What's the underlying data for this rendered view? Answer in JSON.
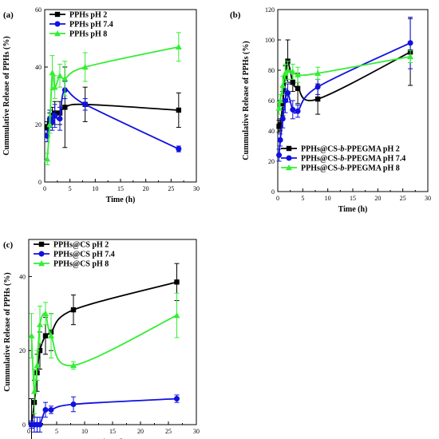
{
  "series_colors": {
    "black": "#000000",
    "blue": "#1010e0",
    "green": "#33ee33"
  },
  "chart_data": [
    {
      "type": "line",
      "panel_label": "(a)",
      "xlabel": "Time (h)",
      "ylabel": "Cummulative Release of PPHs (%)",
      "xlim": [
        0,
        30
      ],
      "ylim": [
        0,
        60
      ],
      "xticks": [
        0,
        5,
        10,
        15,
        20,
        25,
        30
      ],
      "yticks": [
        0,
        20,
        40,
        60
      ],
      "legend_position": "top-left",
      "series": [
        {
          "name": "PPHs pH 2",
          "color": "#000000",
          "marker": "square",
          "x": [
            0.5,
            1,
            1.5,
            2,
            3,
            4,
            8,
            26.5
          ],
          "y": [
            19,
            21,
            23,
            24,
            24,
            26,
            27,
            25
          ],
          "err": [
            2,
            3,
            3,
            4,
            4,
            14,
            6,
            6
          ]
        },
        {
          "name": "PPHs pH 7.4",
          "color": "#1010e0",
          "marker": "circle",
          "x": [
            0.5,
            1,
            1.5,
            2,
            3,
            4,
            8,
            26.5
          ],
          "y": [
            16,
            22,
            21,
            23,
            22,
            32,
            27,
            11.5
          ],
          "err": [
            2,
            3,
            3,
            4,
            4,
            3,
            2,
            1
          ]
        },
        {
          "name": "PPHs pH 8",
          "color": "#33ee33",
          "marker": "triangle",
          "x": [
            0.5,
            1,
            1.5,
            2,
            3,
            4,
            8,
            26.5
          ],
          "y": [
            8,
            20,
            38,
            33,
            37,
            36,
            40,
            47
          ],
          "err": [
            2,
            3,
            6,
            4,
            4,
            6,
            5,
            5
          ]
        }
      ]
    },
    {
      "type": "line",
      "panel_label": "(b)",
      "xlabel": "Time (h)",
      "ylabel": "Cummulative Release of PPHs (%)",
      "xlim": [
        0,
        30
      ],
      "ylim": [
        0,
        120
      ],
      "xticks": [
        0,
        5,
        10,
        15,
        20,
        25,
        30
      ],
      "yticks": [
        0,
        20,
        40,
        60,
        80,
        100,
        120
      ],
      "legend_position": "bottom-left",
      "series": [
        {
          "name_parts": [
            "PPHs@CS-",
            "b",
            "-PPEGMA pH 2"
          ],
          "color": "#000000",
          "marker": "square",
          "x": [
            0.25,
            0.5,
            1,
            1.5,
            2,
            3,
            4,
            8,
            26.5
          ],
          "y": [
            43,
            44,
            58,
            75,
            86,
            72,
            68,
            61,
            92
          ],
          "err": [
            4,
            4,
            8,
            8,
            14,
            6,
            10,
            10,
            22
          ]
        },
        {
          "name_parts": [
            "PPHs@CS-",
            "b",
            "-PPEGMA pH 7.4"
          ],
          "color": "#1010e0",
          "marker": "circle",
          "x": [
            0.25,
            0.5,
            1,
            1.5,
            2,
            3,
            4,
            8,
            26.5
          ],
          "y": [
            24,
            34,
            48,
            60,
            65,
            54,
            53,
            69,
            98
          ],
          "err": [
            4,
            4,
            6,
            8,
            6,
            6,
            4,
            5,
            17
          ]
        },
        {
          "name_parts": [
            "PPHs@CS-",
            "b",
            "-PPEGMA pH 8"
          ],
          "color": "#33ee33",
          "marker": "triangle",
          "x": [
            0.25,
            0.5,
            1,
            1.5,
            2,
            3,
            4,
            8,
            26.5
          ],
          "y": [
            55,
            60,
            70,
            78,
            80,
            79,
            77,
            78,
            89
          ],
          "err": [
            4,
            4,
            6,
            6,
            6,
            5,
            5,
            4,
            4
          ]
        }
      ]
    },
    {
      "type": "line",
      "panel_label": "(c)",
      "xlabel": "Time (h)",
      "ylabel": "Cummulative Release of PPHs (%)",
      "xlim": [
        0,
        30
      ],
      "ylim": [
        0,
        50
      ],
      "xticks": [
        0,
        5,
        10,
        15,
        20,
        25,
        30
      ],
      "yticks": [
        0,
        20,
        40
      ],
      "legend_position": "top-left",
      "series": [
        {
          "name": "PPHs@CS pH 2",
          "color": "#000000",
          "marker": "square",
          "x": [
            0.5,
            1,
            1.5,
            2,
            3,
            4,
            8,
            26.5
          ],
          "y": [
            0,
            6,
            14,
            20,
            24,
            25,
            31,
            38.5
          ],
          "err": [
            7,
            6,
            5,
            5,
            5,
            5,
            4,
            5
          ]
        },
        {
          "name": "PPHs@CS pH 7.4",
          "color": "#1010e0",
          "marker": "circle",
          "x": [
            0.5,
            1,
            1.5,
            2,
            3,
            4,
            8,
            26.5
          ],
          "y": [
            0,
            0,
            0,
            0,
            4,
            4,
            5.5,
            7
          ],
          "err": [
            1,
            2,
            2,
            2,
            2,
            1,
            2,
            1
          ]
        },
        {
          "name": "PPHs@CS pH 8",
          "color": "#33ee33",
          "marker": "triangle",
          "x": [
            0.5,
            1,
            1.5,
            2,
            3,
            4,
            8,
            26.5
          ],
          "y": [
            24,
            9,
            16,
            27,
            30,
            24,
            16,
            29.5
          ],
          "err": [
            6,
            6,
            4,
            5,
            3,
            6,
            1,
            6
          ]
        }
      ]
    }
  ]
}
